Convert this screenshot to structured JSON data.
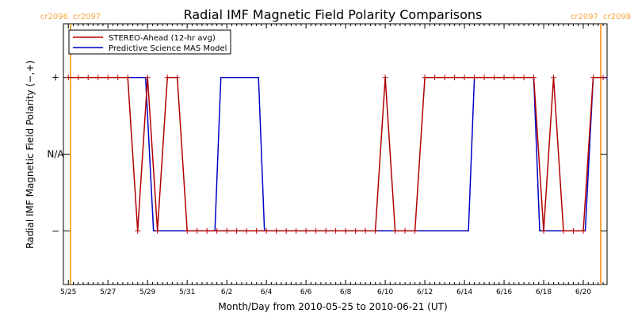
{
  "chart_data": {
    "type": "line",
    "title": "Radial IMF Magnetic Field Polarity Comparisons",
    "xlabel": "Month/Day from 2010-05-25 to 2010-06-21 (UT)",
    "ylabel": "Radial IMF Magnetic Field Polarity (−,+)",
    "x_unit": "days",
    "xlim": [
      -0.25,
      27.2
    ],
    "ylim": [
      -1.7,
      1.7
    ],
    "x_ticks": [
      {
        "x": 0,
        "label": "5/25"
      },
      {
        "x": 2,
        "label": "5/27"
      },
      {
        "x": 4,
        "label": "5/29"
      },
      {
        "x": 6,
        "label": "5/31"
      },
      {
        "x": 8,
        "label": "6/2"
      },
      {
        "x": 10,
        "label": "6/4"
      },
      {
        "x": 12,
        "label": "6/6"
      },
      {
        "x": 14,
        "label": "6/8"
      },
      {
        "x": 16,
        "label": "6/10"
      },
      {
        "x": 18,
        "label": "6/12"
      },
      {
        "x": 20,
        "label": "6/14"
      },
      {
        "x": 22,
        "label": "6/16"
      },
      {
        "x": 24,
        "label": "6/18"
      },
      {
        "x": 26,
        "label": "6/20"
      }
    ],
    "y_ticks": [
      {
        "y": 1,
        "label": "+"
      },
      {
        "y": 0,
        "label": "N/A"
      },
      {
        "y": -1,
        "label": "−"
      }
    ],
    "rotations": [
      {
        "x": 0,
        "left": "cr2096",
        "right": "cr2097",
        "color": "#f5a640"
      },
      {
        "x": 27.2,
        "left": "cr2097",
        "right": "cr2098",
        "color": "#f5a640"
      }
    ],
    "legend": {
      "position": "top-left"
    },
    "series": [
      {
        "name": "STEREO-Ahead (12-hr avg)",
        "color": "#b00000",
        "markers": true,
        "points": [
          [
            0,
            1
          ],
          [
            0.5,
            1
          ],
          [
            1,
            1
          ],
          [
            1.5,
            1
          ],
          [
            2,
            1
          ],
          [
            2.5,
            1
          ],
          [
            3,
            1
          ],
          [
            3.5,
            -1
          ],
          [
            4,
            1
          ],
          [
            4.5,
            -1
          ],
          [
            5,
            1
          ],
          [
            5.5,
            1
          ],
          [
            6,
            -1
          ],
          [
            6.5,
            -1
          ],
          [
            7,
            -1
          ],
          [
            7.5,
            -1
          ],
          [
            8,
            -1
          ],
          [
            8.5,
            -1
          ],
          [
            9,
            -1
          ],
          [
            9.5,
            -1
          ],
          [
            10,
            -1
          ],
          [
            10.5,
            -1
          ],
          [
            11,
            -1
          ],
          [
            11.5,
            -1
          ],
          [
            12,
            -1
          ],
          [
            12.5,
            -1
          ],
          [
            13,
            -1
          ],
          [
            13.5,
            -1
          ],
          [
            14,
            -1
          ],
          [
            14.5,
            -1
          ],
          [
            15,
            -1
          ],
          [
            15.5,
            -1
          ],
          [
            16,
            1
          ],
          [
            16.5,
            -1
          ],
          [
            17,
            -1
          ],
          [
            17.5,
            -1
          ],
          [
            18,
            1
          ],
          [
            18.5,
            1
          ],
          [
            19,
            1
          ],
          [
            19.5,
            1
          ],
          [
            20,
            1
          ],
          [
            20.5,
            1
          ],
          [
            21,
            1
          ],
          [
            21.5,
            1
          ],
          [
            22,
            1
          ],
          [
            22.5,
            1
          ],
          [
            23,
            1
          ],
          [
            23.5,
            1
          ],
          [
            24,
            -1
          ],
          [
            24.5,
            1
          ],
          [
            25,
            -1
          ],
          [
            25.5,
            -1
          ],
          [
            26,
            -1
          ],
          [
            26.5,
            1
          ],
          [
            27,
            1
          ]
        ]
      },
      {
        "name": "Predictive Science MAS Model",
        "color": "#0000c8",
        "markers": false,
        "points": [
          [
            0,
            1
          ],
          [
            3.9,
            1
          ],
          [
            4.3,
            -1
          ],
          [
            7.4,
            -1
          ],
          [
            7.7,
            1
          ],
          [
            9.6,
            1
          ],
          [
            9.9,
            -1
          ],
          [
            20.2,
            -1
          ],
          [
            20.5,
            1
          ],
          [
            23.5,
            1
          ],
          [
            23.8,
            -1
          ],
          [
            26.1,
            -1
          ],
          [
            26.5,
            1
          ],
          [
            27.2,
            1
          ]
        ]
      }
    ]
  }
}
